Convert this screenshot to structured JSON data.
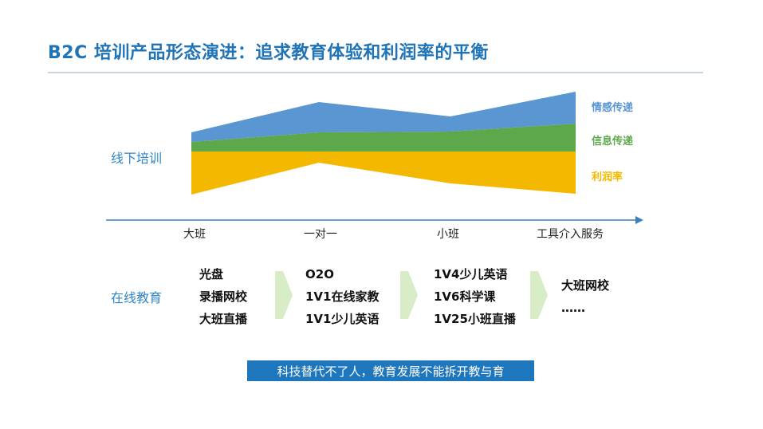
{
  "title": "B2C 培训产品形态演进：追求教育体验和利润率的平衡",
  "offline": {
    "label": "线下培训",
    "legend": [
      {
        "text": "情感传递",
        "color": "#5a96d2"
      },
      {
        "text": "信息传递",
        "color": "#5ea84c"
      },
      {
        "text": "利润率",
        "color": "#f4b800"
      }
    ],
    "stages": [
      "大班",
      "一对一",
      "小班",
      "工具介入服务"
    ]
  },
  "online": {
    "label": "在线教育",
    "columns": [
      [
        "光盘",
        "录播网校",
        "大班直播"
      ],
      [
        "O2O",
        "1V1在线家教",
        "1V1少儿英语"
      ],
      [
        "1V4少儿英语",
        "1V6科学课",
        "1V25小班直播"
      ],
      [
        "大班网校",
        "……"
      ]
    ]
  },
  "footer": "科技替代不了人，教育发展不能拆开教与育",
  "colors": {
    "accent": "#1f74b8",
    "emotion": "#5a96d2",
    "info": "#5ea84c",
    "profit": "#f4b800",
    "arrow": "#d8ecc8"
  }
}
